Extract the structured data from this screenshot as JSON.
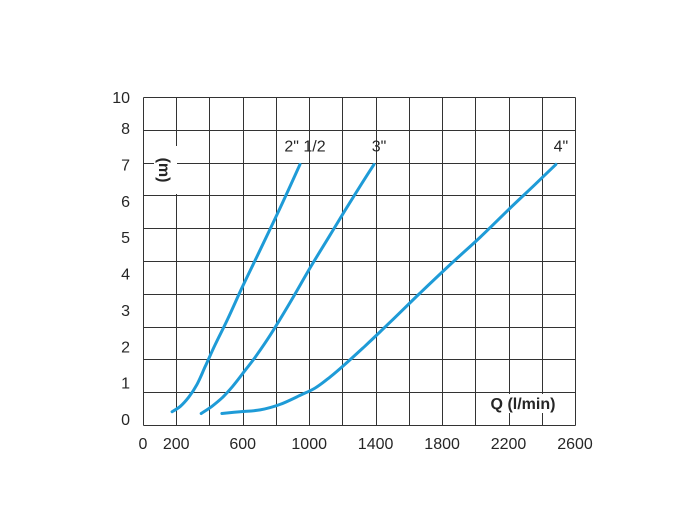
{
  "chart_data": {
    "type": "line",
    "xlabel": "Q (l/min)",
    "ylabel": "(m)",
    "xlim": [
      0,
      2600
    ],
    "ylim": [
      0,
      10
    ],
    "x_ticks": [
      0,
      200,
      600,
      1000,
      1400,
      1800,
      2200,
      2600
    ],
    "y_ticks": [
      10,
      8,
      7,
      6,
      5,
      4,
      3,
      2,
      1,
      0
    ],
    "grid": true,
    "grid_color": "#333333",
    "series": [
      {
        "name": "2\" 1/2",
        "color": "#1e9bd7",
        "x": [
          175,
          225,
          275,
          325,
          375,
          435,
          510,
          600,
          700,
          825,
          945
        ],
        "y": [
          0.2,
          0.35,
          0.6,
          0.95,
          1.45,
          2.05,
          2.75,
          3.65,
          4.6,
          5.8,
          7
        ]
      },
      {
        "name": "3\"",
        "color": "#1e9bd7",
        "x": [
          350,
          415,
          480,
          540,
          600,
          675,
          765,
          885,
          1005,
          1125,
          1245,
          1390
        ],
        "y": [
          0.15,
          0.35,
          0.6,
          0.9,
          1.25,
          1.7,
          2.3,
          3.2,
          4.15,
          5.05,
          5.95,
          7
        ]
      },
      {
        "name": "4\"",
        "color": "#1e9bd7",
        "x": [
          475,
          585,
          705,
          825,
          945,
          1035,
          1125,
          1215,
          1335,
          1485,
          1665,
          1850,
          2030,
          2210,
          2360,
          2485
        ],
        "y": [
          0.15,
          0.2,
          0.25,
          0.4,
          0.65,
          0.85,
          1.15,
          1.5,
          2,
          2.65,
          3.45,
          4.25,
          5,
          5.8,
          6.45,
          7
        ]
      }
    ]
  }
}
